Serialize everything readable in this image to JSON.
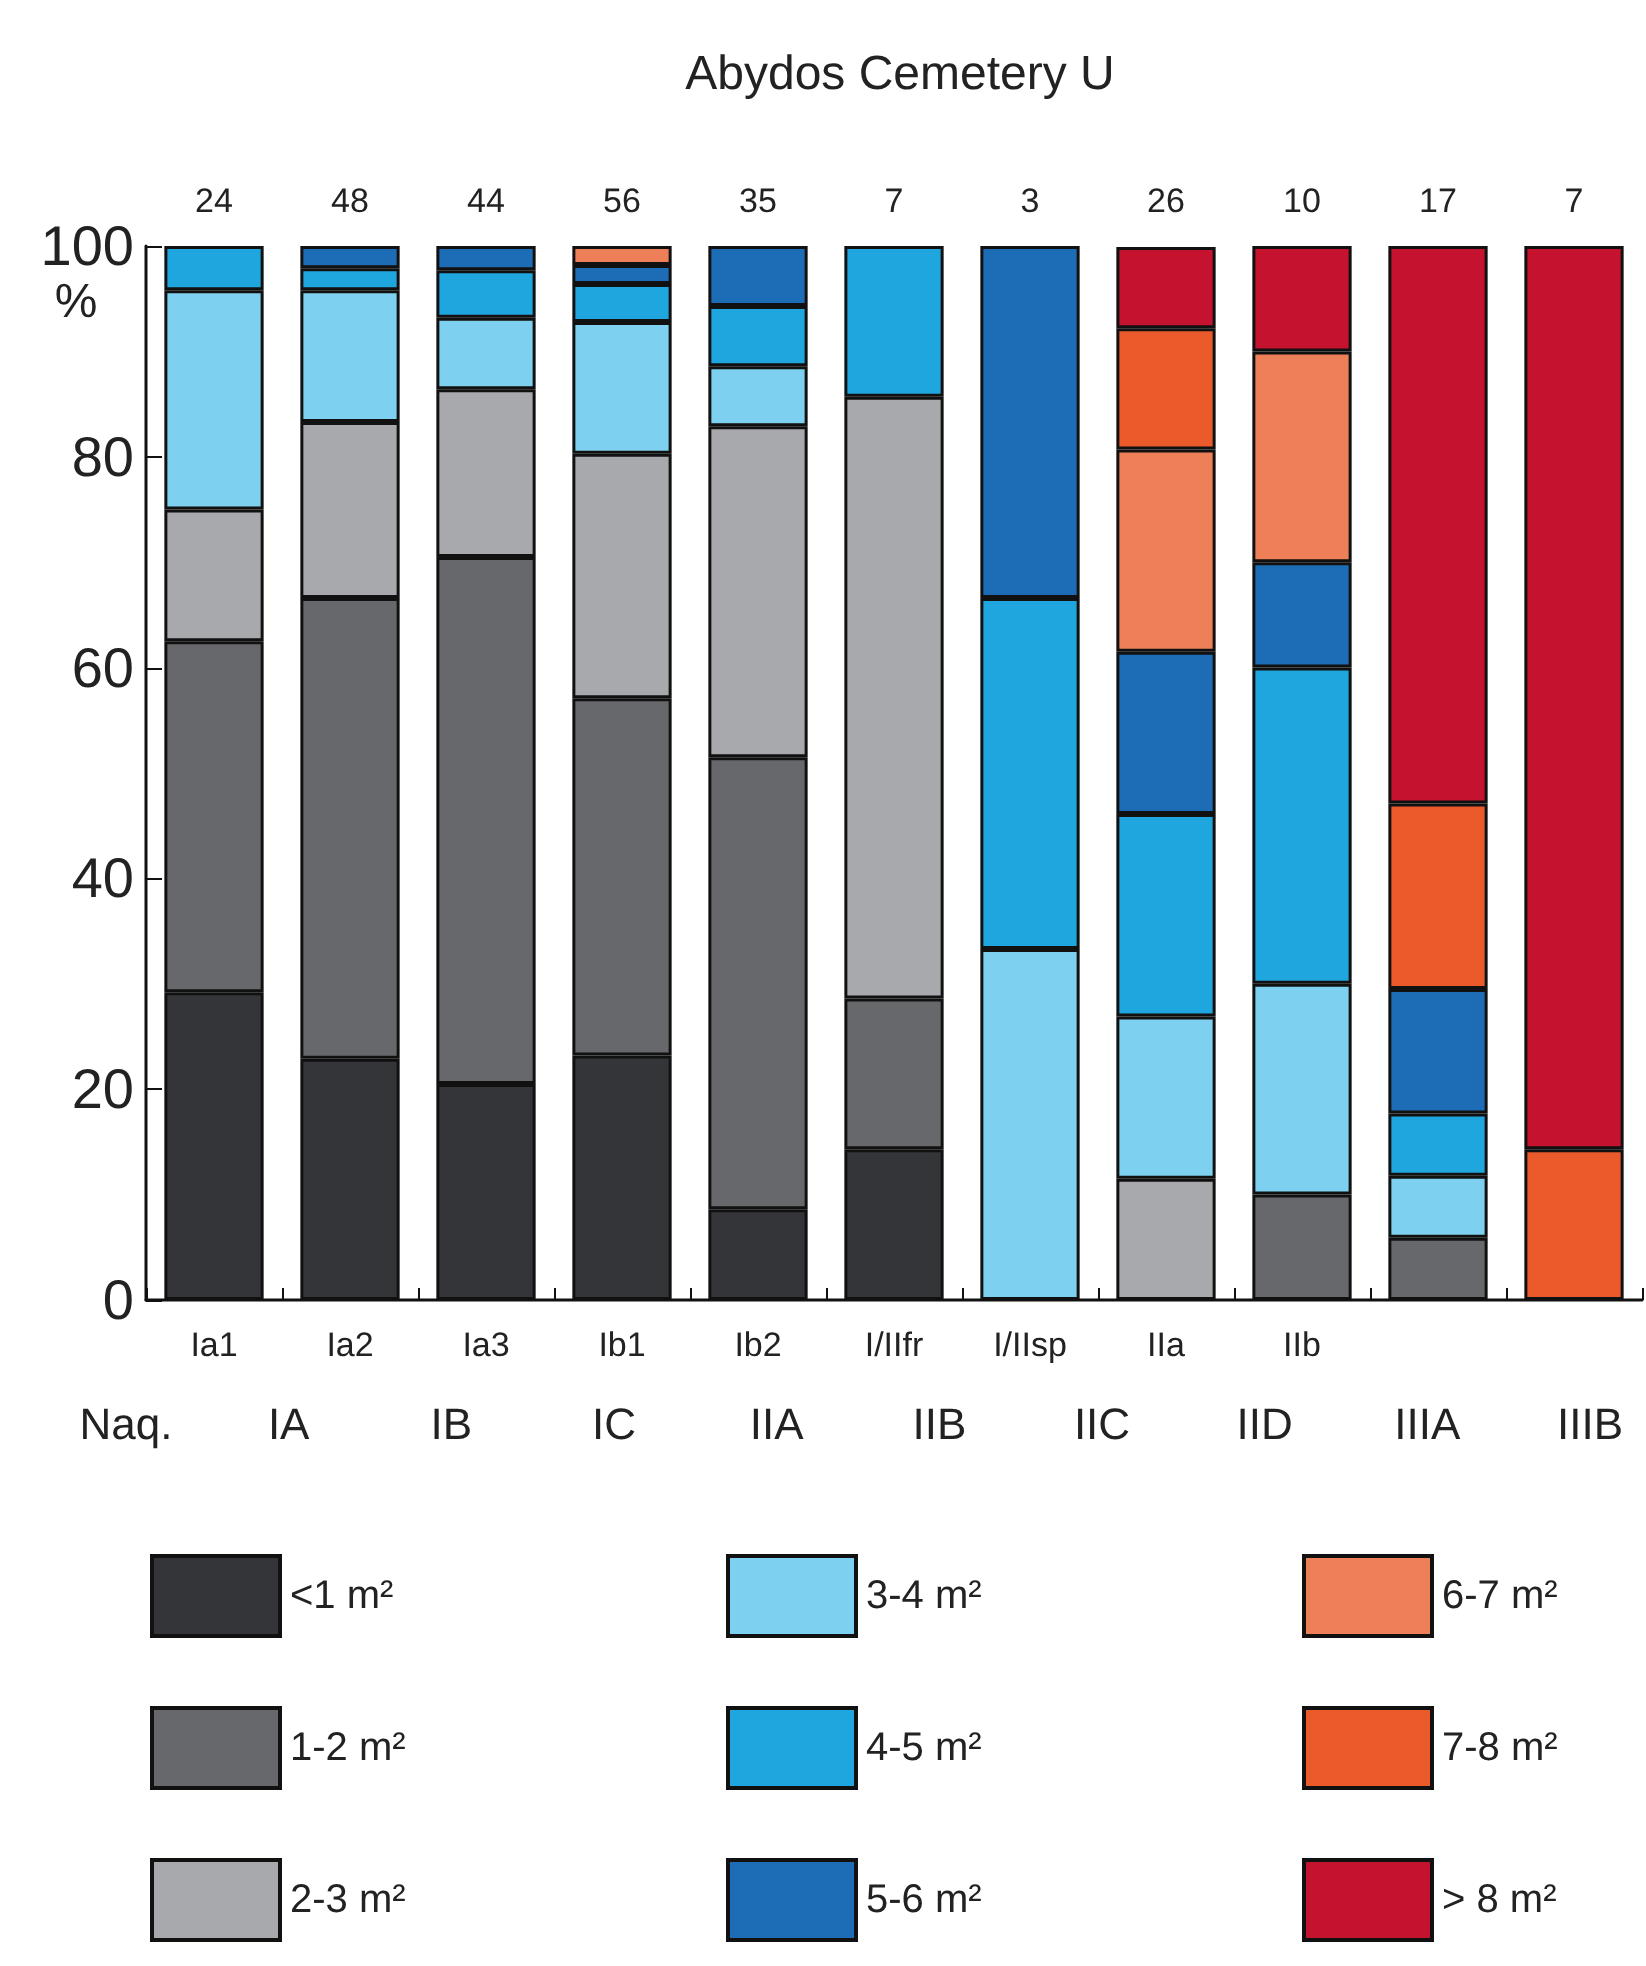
{
  "chart_data": {
    "type": "bar",
    "title": "Abydos Cemetery U",
    "ylabel": "%",
    "stacked": true,
    "legend": "bottom",
    "categories": [
      "Ia1",
      "Ia2",
      "Ia3",
      "Ib1",
      "Ib2",
      "I/IIfr",
      "I/IIsp",
      "IIa",
      "IIb",
      null,
      null
    ],
    "ylim": [
      0,
      100
    ],
    "yticks": [
      0,
      20,
      40,
      60,
      80,
      100
    ],
    "annotations": [
      {
        "text": "24",
        "x": "Ia1",
        "y": 100
      },
      {
        "text": "48",
        "x": "Ia2",
        "y": 100
      },
      {
        "text": "44",
        "x": "Ia3",
        "y": 100
      },
      {
        "text": "56",
        "x": "Ib1",
        "y": 100
      },
      {
        "text": "35",
        "x": "Ib2",
        "y": 100
      },
      {
        "text": "7",
        "x": "I/IIfr",
        "y": 100
      },
      {
        "text": "3",
        "x": "I/IIsp",
        "y": 100
      },
      {
        "text": "26",
        "x": "IIa",
        "y": 100
      },
      {
        "text": "10",
        "x": "IIb",
        "y": 100
      },
      {
        "text": "17",
        "y": 100
      },
      {
        "text": "7",
        "y": 100
      },
      "Naq.",
      "IA",
      "IB",
      "IC",
      "IIA",
      "IIB",
      "IIC",
      "IID",
      "IIIA",
      "IIIB"
    ],
    "series": [
      {
        "name": "<1 m²",
        "color": "#333539",
        "values": [
          29.2,
          22.9,
          20.5,
          23.2,
          8.6,
          14.3,
          null,
          null,
          null,
          null,
          null
        ]
      },
      {
        "name": "1-2 m²",
        "color": "#66686b",
        "values": [
          33.3,
          43.7,
          50.0,
          33.9,
          42.9,
          14.3,
          null,
          null,
          10,
          5.9,
          null
        ]
      },
      {
        "name": "2-3 m²",
        "color": "#a7a9ac",
        "values": [
          12.5,
          16.7,
          15.9,
          23.2,
          31.4,
          57.1,
          null,
          11.5,
          null,
          null,
          null
        ]
      },
      {
        "name": "3-4 m²",
        "color": "#7dd0ef",
        "values": [
          20.8,
          12.5,
          6.8,
          12.5,
          5.7,
          null,
          33.3,
          15.4,
          20,
          5.9,
          null
        ]
      },
      {
        "name": "4-5 m²",
        "color": "#1fa6df",
        "values": [
          4.2,
          2.1,
          4.5,
          3.6,
          5.7,
          14.3,
          33.3,
          19.2,
          30,
          5.9,
          null
        ]
      },
      {
        "name": "5-6 m²",
        "color": "#1c6db5",
        "values": [
          null,
          2.1,
          2.3,
          1.8,
          5.7,
          null,
          33.4,
          15.4,
          10,
          11.8,
          null
        ]
      },
      {
        "name": "6-7 m²",
        "color": "#ee8059",
        "values": [
          null,
          null,
          null,
          1.8,
          null,
          null,
          null,
          19.2,
          20,
          null,
          null
        ]
      },
      {
        "name": "7-8 m²",
        "color": "#ea5a2a",
        "values": [
          null,
          null,
          null,
          null,
          null,
          null,
          null,
          11.5,
          null,
          17.6,
          14.3
        ]
      },
      {
        "name": "> 8 m²",
        "color": "#c4122f",
        "values": [
          null,
          null,
          null,
          null,
          null,
          null,
          null,
          7.7,
          10,
          52.9,
          85.7
        ]
      }
    ]
  }
}
